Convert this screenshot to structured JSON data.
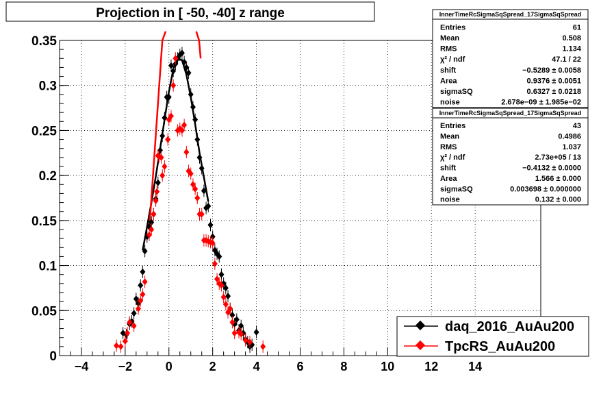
{
  "chart_data": {
    "type": "scatter",
    "title": "Projection in [ -50, -40] z range",
    "xlim": [
      -5,
      17
    ],
    "ylim": [
      0,
      0.35
    ],
    "x_ticks": [
      -4,
      -2,
      0,
      2,
      4,
      6,
      8,
      10,
      12,
      14
    ],
    "x_tick_labels": [
      "−4",
      "−2",
      "0",
      "2",
      "4",
      "6",
      "8",
      "10",
      "12",
      "14"
    ],
    "y_ticks": [
      0,
      0.05,
      0.1,
      0.15,
      0.2,
      0.25,
      0.3,
      0.35
    ],
    "y_tick_labels": [
      "0",
      "0.05",
      "0.1",
      "0.15",
      "0.2",
      "0.25",
      "0.3",
      "0.35"
    ],
    "grid": true,
    "legend_position": "bottom-right",
    "series": [
      {
        "name": "daq_2016_AuAu200",
        "color": "#000000",
        "x": [
          -2.1,
          -1.95,
          -1.8,
          -1.7,
          -1.6,
          -1.5,
          -1.4,
          -1.3,
          -1.2,
          -1.1,
          -1.0,
          -0.9,
          -0.8,
          -0.7,
          -0.6,
          -0.5,
          -0.4,
          -0.3,
          -0.2,
          -0.1,
          0.0,
          0.1,
          0.2,
          0.3,
          0.4,
          0.5,
          0.6,
          0.7,
          0.8,
          0.9,
          1.0,
          1.1,
          1.2,
          1.3,
          1.4,
          1.5,
          1.6,
          1.7,
          1.8,
          1.9,
          2.0,
          2.1,
          2.2,
          2.3,
          2.4,
          2.5,
          2.6,
          2.7,
          2.8,
          2.9,
          3.0,
          3.1,
          3.2,
          3.3,
          3.4,
          3.5,
          3.6,
          3.7,
          3.8,
          4.0
        ],
        "y": [
          0.025,
          0.023,
          0.035,
          0.038,
          0.047,
          0.063,
          0.058,
          0.078,
          0.093,
          0.116,
          0.132,
          0.143,
          0.148,
          0.157,
          0.174,
          0.192,
          0.228,
          0.244,
          0.264,
          0.287,
          0.287,
          0.322,
          0.316,
          0.324,
          0.33,
          0.334,
          0.336,
          0.326,
          0.32,
          0.314,
          0.29,
          0.276,
          0.262,
          0.24,
          0.22,
          0.208,
          0.183,
          0.164,
          0.166,
          0.145,
          0.132,
          0.117,
          0.113,
          0.11,
          0.09,
          0.08,
          0.075,
          0.066,
          0.052,
          0.045,
          0.035,
          0.04,
          0.028,
          0.033,
          0.025,
          0.018,
          0.015,
          0.01,
          0.012,
          0.026
        ]
      },
      {
        "name": "TpcRS_AuAu200",
        "color": "#ff0000",
        "x": [
          -2.4,
          -2.2,
          -2.0,
          -1.9,
          -1.8,
          -1.6,
          -1.4,
          -1.3,
          -1.2,
          -1.1,
          -0.9,
          -0.8,
          -0.7,
          -0.6,
          -0.55,
          -0.5,
          -0.45,
          -0.35,
          -0.3,
          -0.2,
          -0.05,
          0.0,
          0.1,
          0.2,
          0.3,
          0.4,
          0.5,
          0.6,
          0.7,
          0.8,
          0.9,
          1.0,
          1.1,
          1.2,
          1.3,
          1.4,
          1.5,
          1.6,
          1.7,
          1.8,
          1.9,
          2.0,
          2.1,
          2.2,
          2.3,
          2.4,
          2.5,
          2.6,
          2.7,
          2.8,
          2.9,
          3.0,
          3.2,
          3.3,
          3.5,
          3.7,
          4.3
        ],
        "y": [
          0.011,
          0.01,
          0.016,
          0.025,
          0.037,
          0.033,
          0.052,
          0.061,
          0.068,
          0.082,
          0.134,
          0.14,
          0.157,
          0.172,
          0.182,
          0.222,
          0.221,
          0.22,
          0.2,
          0.21,
          0.24,
          0.262,
          0.266,
          0.3,
          0.33,
          0.25,
          0.252,
          0.25,
          0.256,
          0.226,
          0.205,
          0.202,
          0.19,
          0.185,
          0.175,
          0.157,
          0.157,
          0.128,
          0.128,
          0.127,
          0.126,
          0.125,
          0.102,
          0.085,
          0.08,
          0.078,
          0.065,
          0.057,
          0.048,
          0.052,
          0.037,
          0.025,
          0.026,
          0.024,
          0.017,
          0.015,
          0.01
        ]
      }
    ],
    "fits": [
      {
        "color": "#000000",
        "x": [
          -1.2,
          -1.0,
          -0.8,
          -0.6,
          -0.4,
          -0.2,
          0.0,
          0.2,
          0.4,
          0.6,
          0.8,
          1.0,
          1.2,
          1.4,
          1.6,
          1.8
        ],
        "y": [
          0.117,
          0.143,
          0.17,
          0.199,
          0.23,
          0.262,
          0.293,
          0.318,
          0.33,
          0.328,
          0.312,
          0.287,
          0.257,
          0.225,
          0.198,
          0.171
        ]
      },
      {
        "color": "#ff0000",
        "x": [
          -0.9,
          -0.7,
          -0.5,
          -0.3,
          -0.15
        ],
        "y": [
          0.14,
          0.21,
          0.28,
          0.35,
          0.36
        ],
        "x2": [
          1.25,
          1.38,
          1.45
        ],
        "y2": [
          0.36,
          0.35,
          0.33
        ]
      }
    ]
  },
  "stat_boxes": [
    {
      "title": "InnerTimeRcSigmaSqSpread_17SigmaSqSpread",
      "rows": [
        {
          "key": "Entries",
          "value": "61"
        },
        {
          "key": "Mean",
          "value": "0.508"
        },
        {
          "key": "RMS",
          "value": "1.134"
        },
        {
          "key": "χ² / ndf",
          "value": "47.1 / 22"
        },
        {
          "key": "shift",
          "value": "−0.5289 ± 0.0058"
        },
        {
          "key": "Area",
          "value": "0.9376 ± 0.0051"
        },
        {
          "key": "sigmaSQ",
          "value": "0.6327 ± 0.0218"
        },
        {
          "key": "noise",
          "value": "2.678e−09 ± 1.985e−02"
        }
      ]
    },
    {
      "title": "InnerTimeRcSigmaSqSpread_17SigmaSqSpread",
      "rows": [
        {
          "key": "Entries",
          "value": "43"
        },
        {
          "key": "Mean",
          "value": "0.4986"
        },
        {
          "key": "RMS",
          "value": "1.037"
        },
        {
          "key": "χ² / ndf",
          "value": "2.73e+05 / 13"
        },
        {
          "key": "shift",
          "value": "−0.4132 ± 0.0000"
        },
        {
          "key": "Area",
          "value": "1.566 ± 0.000"
        },
        {
          "key": "sigmaSQ",
          "value": "0.003698 ± 0.000000"
        },
        {
          "key": "noise",
          "value": "0.132 ± 0.000"
        }
      ]
    }
  ]
}
